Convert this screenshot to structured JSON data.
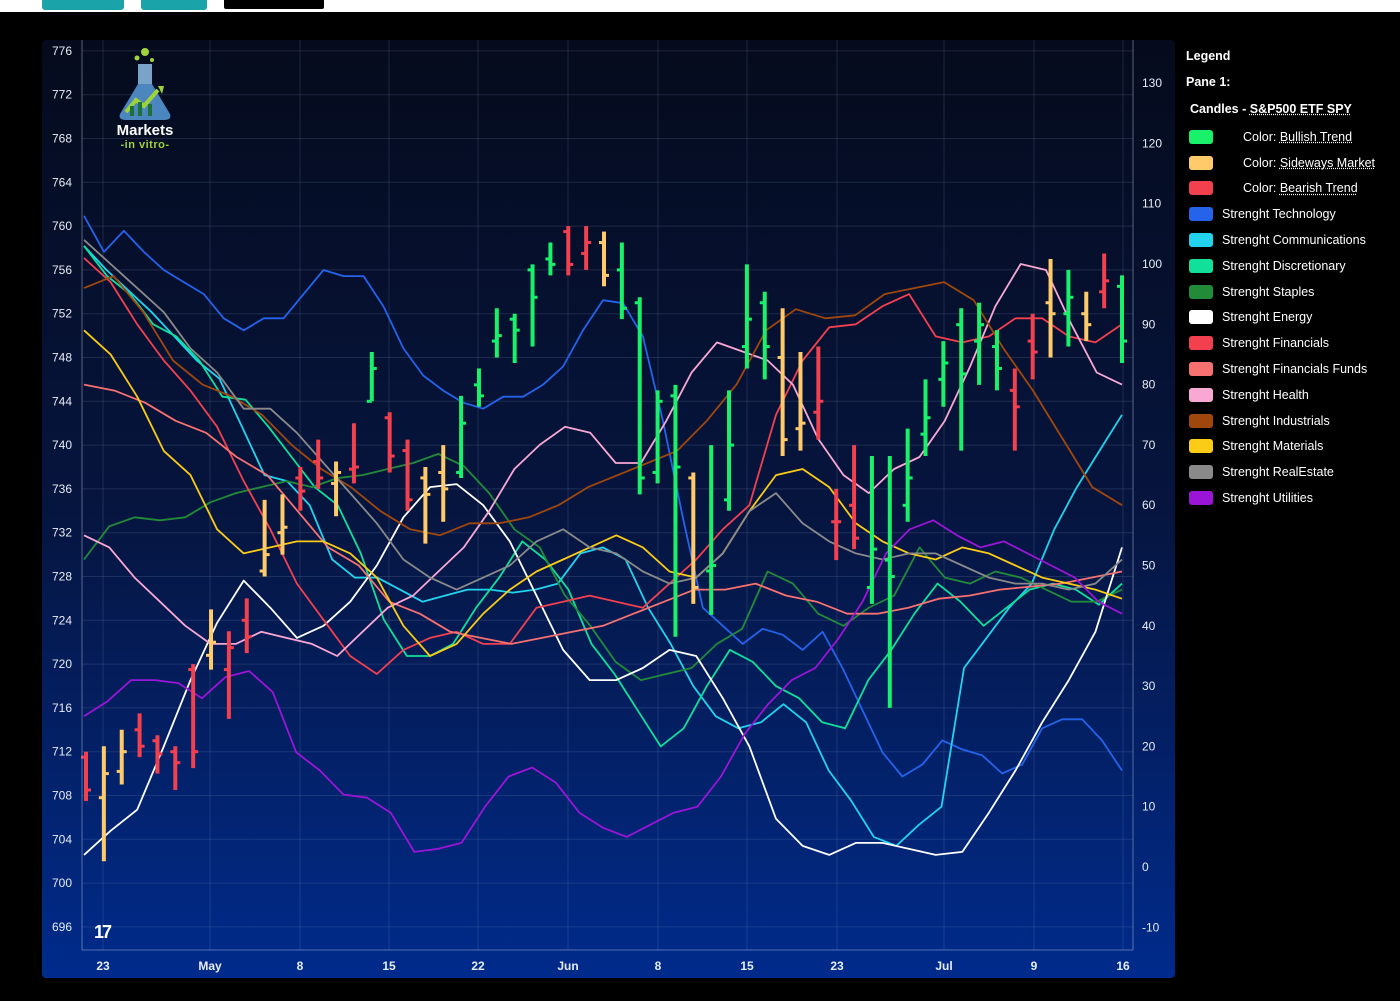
{
  "legend": {
    "title": "Legend",
    "pane": "Pane 1:",
    "candles_prefix": "Candles - ",
    "candles_symbol": "S&P500 ETF SPY",
    "candle_colors": [
      {
        "prefix": "Color: ",
        "label": "Bullish Trend",
        "color": "#19f16a"
      },
      {
        "prefix": "Color: ",
        "label": "Sideways Market",
        "color": "#ffca6a"
      },
      {
        "prefix": "Color: ",
        "label": "Bearish Trend",
        "color": "#f2404f"
      }
    ]
  },
  "logo": {
    "line1": "Markets",
    "line2": "-in vitro-"
  },
  "tv_logo": "17",
  "chart_data": {
    "type": "line",
    "candles": {
      "name": "S&P500 ETF SPY",
      "ohlc": [
        [
          "bear",
          711.5,
          712.0,
          707.5,
          708.5
        ],
        [
          "side",
          707.8,
          712.5,
          702.0,
          710.0
        ],
        [
          "side",
          710.2,
          714.0,
          709.0,
          712.0
        ],
        [
          "bear",
          714.0,
          715.5,
          711.5,
          712.5
        ],
        [
          "bear",
          713.0,
          713.5,
          710.0,
          711.8
        ],
        [
          "bear",
          712.0,
          712.5,
          708.5,
          711.0
        ],
        [
          "bear",
          719.5,
          720.0,
          710.5,
          712.0
        ],
        [
          "side",
          720.8,
          725.0,
          719.5,
          722.0
        ],
        [
          "bear",
          719.5,
          723.0,
          715.0,
          721.5
        ],
        [
          "bear",
          724.0,
          726.0,
          721.0,
          722.5
        ],
        [
          "side",
          728.5,
          735.0,
          728.0,
          730.0
        ],
        [
          "side",
          732.0,
          735.5,
          730.0,
          732.5
        ],
        [
          "bear",
          737.0,
          738.0,
          734.0,
          735.8
        ],
        [
          "bear",
          738.5,
          740.5,
          736.0,
          737.0
        ],
        [
          "side",
          736.5,
          738.5,
          733.5,
          737.5
        ],
        [
          "bear",
          737.8,
          742.0,
          736.5,
          738.0
        ],
        [
          "bull",
          744.0,
          748.5,
          744.0,
          747.0
        ],
        [
          "bear",
          742.5,
          743.0,
          737.5,
          739.0
        ],
        [
          "bear",
          739.5,
          740.5,
          734.0,
          735.0
        ],
        [
          "side",
          737.0,
          738.0,
          731.0,
          735.5
        ],
        [
          "side",
          737.5,
          740.0,
          733.0,
          736.0
        ],
        [
          "bull",
          737.5,
          744.5,
          737.0,
          742.0
        ],
        [
          "bull",
          745.5,
          747.0,
          743.5,
          744.5
        ],
        [
          "bull",
          749.5,
          752.5,
          748.0,
          750.0
        ],
        [
          "bull",
          751.5,
          752.0,
          747.5,
          750.5
        ],
        [
          "bull",
          756.0,
          756.5,
          749.0,
          753.5
        ],
        [
          "bull",
          757.0,
          758.5,
          755.5,
          756.5
        ],
        [
          "bear",
          759.5,
          760.0,
          755.5,
          756.5
        ],
        [
          "bear",
          757.5,
          760.0,
          756.0,
          758.5
        ],
        [
          "side",
          758.5,
          759.5,
          754.5,
          755.5
        ],
        [
          "bull",
          756.0,
          758.5,
          751.5,
          752.5
        ],
        [
          "bull",
          753.0,
          753.5,
          735.5,
          737.0
        ],
        [
          "bull",
          737.5,
          745.0,
          736.5,
          744.0
        ],
        [
          "bull",
          744.5,
          745.5,
          722.5,
          738.0
        ],
        [
          "side",
          737.0,
          737.5,
          725.5,
          727.0
        ],
        [
          "bull",
          728.5,
          740.0,
          724.5,
          729.0
        ],
        [
          "bull",
          735.0,
          745.0,
          734.0,
          740.0
        ],
        [
          "bull",
          749.0,
          756.5,
          747.0,
          751.5
        ],
        [
          "bull",
          753.0,
          754.0,
          746.0,
          749.0
        ],
        [
          "side",
          748.0,
          752.5,
          739.0,
          740.5
        ],
        [
          "side",
          741.5,
          748.5,
          739.5,
          742.0
        ],
        [
          "bear",
          743.0,
          749.0,
          740.5,
          744.0
        ],
        [
          "bear",
          733.0,
          736.0,
          729.5,
          733.0
        ],
        [
          "bear",
          734.5,
          740.0,
          730.5,
          731.5
        ],
        [
          "bull",
          727.0,
          739.0,
          725.5,
          730.5
        ],
        [
          "bull",
          729.5,
          739.0,
          716.0,
          728.0
        ],
        [
          "bull",
          734.5,
          741.5,
          733.0,
          737.0
        ],
        [
          "bull",
          741.0,
          746.0,
          739.0,
          742.5
        ],
        [
          "bull",
          746.0,
          749.5,
          743.5,
          747.5
        ],
        [
          "bull",
          751.0,
          752.5,
          739.5,
          746.5
        ],
        [
          "bull",
          749.5,
          753.0,
          745.5,
          751.0
        ],
        [
          "bull",
          749.0,
          750.5,
          745.0,
          747.0
        ],
        [
          "bear",
          745.0,
          747.0,
          739.5,
          743.5
        ],
        [
          "bear",
          749.5,
          752.0,
          746.0,
          748.5
        ],
        [
          "side",
          753.0,
          757.0,
          748.0,
          752.0
        ],
        [
          "bull",
          752.0,
          756.0,
          749.0,
          753.5
        ],
        [
          "side",
          752.0,
          754.0,
          749.5,
          751.0
        ],
        [
          "bear",
          754.0,
          757.5,
          752.5,
          755.0
        ],
        [
          "bull",
          754.5,
          755.5,
          747.5,
          749.5
        ]
      ]
    },
    "series": [
      {
        "name": "Strenght Technology",
        "color": "#2563eb",
        "values": [
          108,
          102,
          105.5,
          102,
          99,
          97,
          95,
          91,
          89,
          91,
          91,
          95,
          99,
          98,
          98,
          93,
          86,
          81.5,
          79,
          77,
          76,
          78,
          78,
          80,
          83,
          89,
          94,
          93.5,
          88,
          74,
          58,
          43,
          40,
          37,
          39.5,
          38.5,
          36,
          39,
          33,
          26,
          19,
          15,
          17,
          21,
          19.5,
          18.5,
          15.5,
          17,
          23,
          24.5,
          24.5,
          21,
          16
        ]
      },
      {
        "name": "Strenght Communications",
        "color": "#22d3ee",
        "values": [
          103,
          99,
          95.5,
          92,
          88,
          84,
          81,
          73,
          65,
          64,
          60,
          51,
          48,
          48,
          46,
          44,
          45,
          46,
          46,
          45.5,
          46,
          47,
          52,
          53,
          51,
          43,
          37,
          30,
          25,
          23,
          24,
          27,
          24,
          16,
          11,
          5,
          3.5,
          7,
          10,
          33,
          38,
          43,
          47,
          56,
          63,
          69,
          75
        ]
      },
      {
        "name": "Strenght Discretionary",
        "color": "#10e09a",
        "values": [
          103,
          98,
          95,
          90,
          88,
          84,
          78,
          77.5,
          73,
          68,
          63,
          60,
          52,
          41,
          35,
          35,
          37,
          43,
          48,
          54,
          51,
          46,
          37,
          32,
          26,
          20,
          23,
          30,
          36,
          34,
          30,
          28,
          24,
          23,
          31,
          36,
          42,
          47,
          44,
          40,
          43,
          46,
          47,
          46,
          43.5,
          47
        ]
      },
      {
        "name": "Strenght Staples",
        "color": "#228b3a",
        "values": [
          51,
          56.5,
          58,
          57.5,
          58,
          60.5,
          62,
          63,
          64,
          63,
          64.5,
          65,
          66,
          67,
          68.5,
          66.5,
          62,
          56,
          53,
          45,
          40,
          34,
          31,
          32,
          33,
          37,
          39.5,
          49,
          47,
          42,
          40,
          43,
          45,
          53,
          48,
          47,
          49,
          48,
          46,
          44,
          44,
          46
        ]
      },
      {
        "name": "Strenght Energy",
        "color": "#ffffff",
        "values": [
          2,
          6,
          9.5,
          20,
          31,
          40.5,
          47.5,
          43,
          38,
          40,
          44,
          50,
          58,
          63,
          63.5,
          60,
          54,
          45,
          36,
          31,
          31,
          33,
          36,
          35,
          28,
          20,
          8,
          3.5,
          2,
          4,
          4,
          3,
          2,
          2.5,
          9,
          16,
          24,
          31,
          39,
          53
        ]
      },
      {
        "name": "Strenght Financials",
        "color": "#f2404f",
        "values": [
          101,
          97,
          90,
          84,
          79,
          73,
          64,
          56,
          47,
          41,
          35,
          32,
          36,
          38,
          39,
          37,
          37,
          43,
          44,
          45,
          44,
          43,
          47,
          51,
          56,
          60,
          75,
          84,
          89.5,
          90,
          93,
          95,
          88,
          87,
          88,
          91,
          91,
          88,
          87,
          90
        ]
      },
      {
        "name": "Strenght Financials Funds",
        "color": "#f87171",
        "values": [
          80,
          79,
          77,
          74,
          72,
          68,
          65,
          59,
          53,
          50,
          44,
          42,
          39,
          38,
          37,
          38,
          39,
          40,
          42,
          44,
          46,
          46,
          47,
          45,
          44,
          42,
          42,
          43,
          44.5,
          45,
          46,
          46.5,
          47,
          48,
          49
        ]
      },
      {
        "name": "Strenght Health",
        "color": "#f9a8d4",
        "values": [
          55,
          53,
          48,
          44,
          40,
          37,
          37,
          39,
          38,
          37,
          35,
          39,
          43,
          45,
          49,
          53,
          59,
          66,
          70,
          73,
          72,
          67,
          67,
          74,
          82,
          87,
          85.5,
          84,
          80,
          71,
          65,
          62,
          66,
          68,
          74,
          83,
          93,
          100,
          99,
          90,
          82,
          80
        ]
      },
      {
        "name": "Strenght Industrials",
        "color": "#a0470e",
        "values": [
          96,
          98,
          92,
          84,
          80,
          78,
          75,
          70,
          66,
          63,
          59,
          56,
          55,
          57,
          57,
          58,
          60,
          63,
          65,
          67,
          69,
          74,
          80,
          89,
          92.5,
          91,
          91.5,
          95,
          96,
          97,
          94,
          86,
          79,
          71,
          63,
          60
        ]
      },
      {
        "name": "Strenght Materials",
        "color": "#facc15",
        "values": [
          89,
          85,
          78,
          69,
          65,
          56,
          52,
          53,
          54,
          54,
          52,
          48,
          40,
          35,
          37,
          42,
          46,
          49,
          51,
          53,
          55,
          53,
          49,
          48,
          52,
          59,
          65,
          66,
          63,
          57,
          54,
          52,
          51,
          53,
          52,
          50,
          48,
          47,
          46,
          44.5
        ]
      },
      {
        "name": "Strenght RealEstate",
        "color": "#8a8a8a",
        "values": [
          104,
          100,
          96,
          92,
          86,
          82,
          76,
          76,
          72,
          67,
          62,
          57,
          51,
          48,
          46,
          48,
          50,
          54,
          56,
          53,
          52,
          49,
          47,
          48,
          52,
          59,
          62,
          57,
          54,
          52,
          51,
          52,
          52,
          50,
          48,
          47,
          47,
          46,
          47,
          51
        ]
      },
      {
        "name": "Strenght Utilities",
        "color": "#9b15d6",
        "values": [
          25,
          27.5,
          31,
          31,
          30.5,
          28,
          31.5,
          32.5,
          29,
          19,
          16,
          12,
          11.5,
          9,
          2.5,
          3,
          4,
          10,
          15,
          16.5,
          14,
          9,
          6.5,
          5,
          7,
          9,
          10,
          15,
          22,
          27,
          31,
          33,
          38,
          44,
          52,
          56,
          57.5,
          55,
          53,
          54,
          52,
          50,
          48,
          44,
          42
        ]
      }
    ],
    "y_left": {
      "ticks": [
        776,
        772,
        768,
        764,
        760,
        756,
        752,
        748,
        744,
        740,
        736,
        732,
        728,
        724,
        720,
        716,
        712,
        708,
        704,
        700,
        696
      ]
    },
    "y_right": {
      "ticks": [
        130,
        120,
        110,
        100,
        90,
        80,
        70,
        60,
        50,
        40,
        30,
        20,
        10,
        0,
        -10
      ]
    },
    "x_ticks": [
      "23",
      "May",
      "8",
      "15",
      "22",
      "Jun",
      "8",
      "15",
      "23",
      "Jul",
      "9",
      "16"
    ],
    "grid": true,
    "legend_position": "right"
  }
}
